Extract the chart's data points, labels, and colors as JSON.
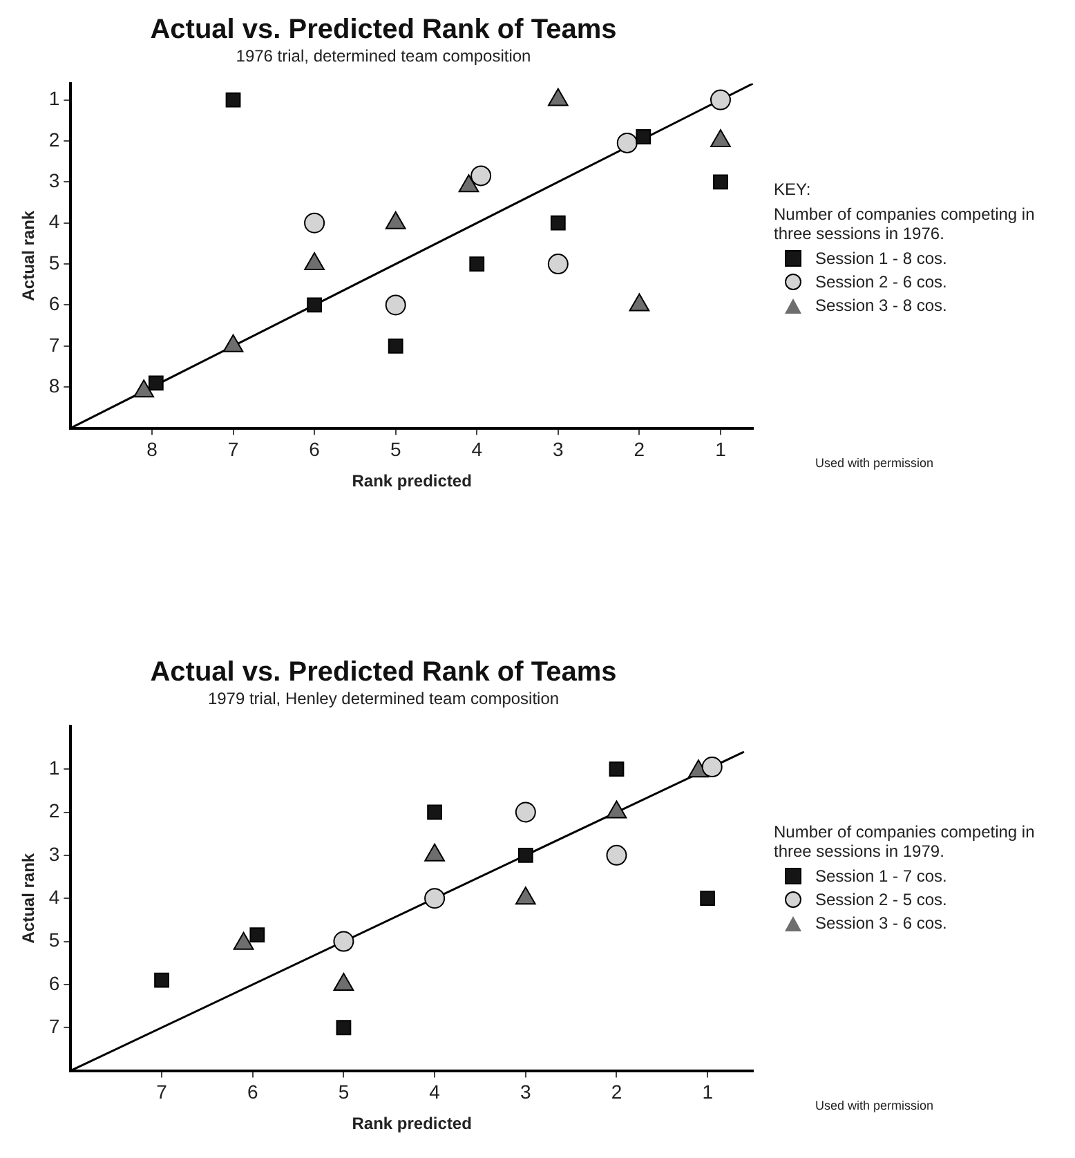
{
  "chart_data": [
    {
      "type": "scatter",
      "title": "Actual vs. Predicted Rank of Teams",
      "subtitle": "1976 trial, determined team composition",
      "xlabel": "Rank predicted",
      "ylabel": "Actual rank",
      "xlim": [
        9,
        0.6
      ],
      "xticks": [
        8,
        7,
        6,
        5,
        4,
        3,
        2,
        1
      ],
      "ylim": [
        9,
        0.6
      ],
      "yticks": [
        8,
        7,
        6,
        5,
        4,
        3,
        2,
        1
      ],
      "grid": false,
      "legend": "right",
      "legend_title": "Number of companies competing in three sessions in 1976.",
      "annotations": [
        "KEY:",
        "Used with permission"
      ],
      "series": [
        {
          "name": "Session 1 - 8 cos.",
          "color": "#151515",
          "marker": "square",
          "x": [
            7,
            1.95,
            1,
            3,
            4,
            6,
            5,
            7.95
          ],
          "values": [
            1,
            1.9,
            3,
            4,
            5,
            6,
            7,
            7.9
          ]
        },
        {
          "name": "Session 2 - 6 cos.",
          "color": "#d4d4d4",
          "marker": "circle",
          "x": [
            1,
            2.15,
            3.95,
            6,
            3,
            5
          ],
          "values": [
            1,
            2.05,
            2.85,
            4,
            5,
            6
          ]
        },
        {
          "name": "Session 3 - 8 cos.",
          "color": "#6e6e6e",
          "marker": "triangle",
          "x": [
            3,
            1,
            4.1,
            5,
            6,
            2,
            7,
            8.1
          ],
          "values": [
            1,
            2,
            3.1,
            4,
            5,
            6,
            7,
            8.1
          ]
        },
        {
          "type": "line",
          "color": "#000000",
          "marker": "none",
          "x": [
            9,
            0.6
          ],
          "values": [
            9,
            0.6
          ]
        }
      ]
    },
    {
      "type": "scatter",
      "title": "Actual vs. Predicted Rank of Teams",
      "subtitle": "1979 trial, Henley determined team composition",
      "xlabel": "Rank predicted",
      "ylabel": "Actual rank",
      "xlim": [
        8,
        0.5
      ],
      "xticks": [
        7,
        6,
        5,
        4,
        3,
        2,
        1
      ],
      "ylim": [
        8,
        0
      ],
      "yticks": [
        7,
        6,
        5,
        4,
        3,
        2,
        1
      ],
      "grid": false,
      "legend": "right",
      "legend_title": "Number of companies competing in three sessions in 1979.",
      "annotations": [
        "Used with permission"
      ],
      "series": [
        {
          "name": "Session 1 - 7 cos.",
          "color": "#151515",
          "marker": "square",
          "x": [
            2,
            4,
            3,
            1,
            5.95,
            7,
            5
          ],
          "values": [
            1,
            2,
            3,
            4,
            4.85,
            5.9,
            7
          ]
        },
        {
          "name": "Session 2 - 5 cos.",
          "color": "#d4d4d4",
          "marker": "circle",
          "x": [
            0.95,
            3,
            2,
            4,
            5
          ],
          "values": [
            0.95,
            2,
            3,
            4,
            5
          ]
        },
        {
          "name": "Session 3 - 6 cos.",
          "color": "#6e6e6e",
          "marker": "triangle",
          "x": [
            1.1,
            2,
            4,
            3,
            6.1,
            5
          ],
          "values": [
            1.05,
            2,
            3,
            4,
            5.05,
            6
          ]
        },
        {
          "type": "line",
          "color": "#000000",
          "marker": "none",
          "x": [
            8,
            0.6
          ],
          "values": [
            8,
            0.6
          ]
        }
      ]
    }
  ]
}
